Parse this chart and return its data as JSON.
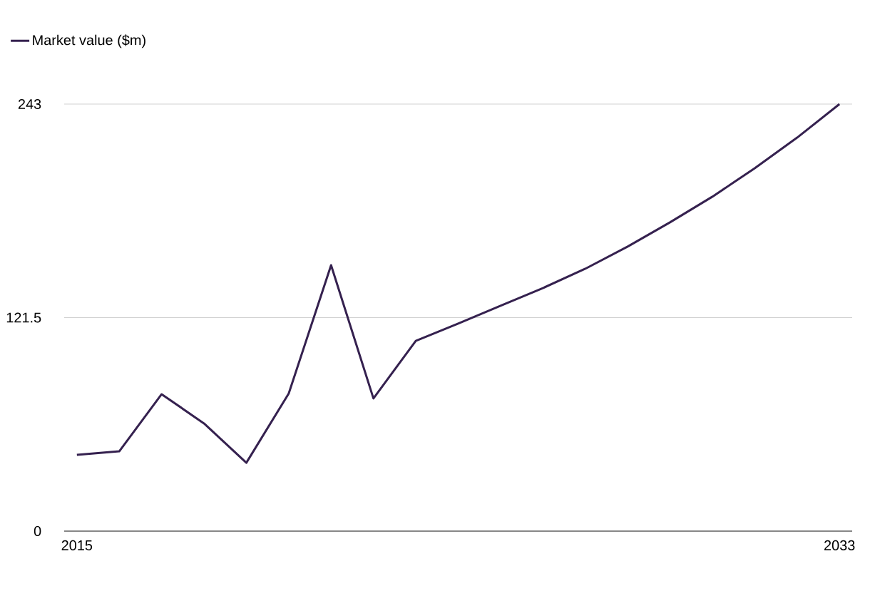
{
  "chart_data": {
    "type": "line",
    "x": [
      2015,
      2016,
      2017,
      2018,
      2019,
      2020,
      2021,
      2022,
      2023,
      2024,
      2025,
      2026,
      2027,
      2028,
      2029,
      2030,
      2031,
      2032,
      2033
    ],
    "series": [
      {
        "name": "Market value ($m)",
        "color": "#35214f",
        "values": [
          43.4,
          45.4,
          77.9,
          61.3,
          38.9,
          78.3,
          151.3,
          75.5,
          108.3,
          118.1,
          128.2,
          138.3,
          149.3,
          161.9,
          175.7,
          190.3,
          206.5,
          223.9,
          243
        ]
      }
    ],
    "xlim": [
      2014.7,
      2033.3
    ],
    "xticks": [
      2015,
      2033
    ],
    "ylim": [
      0,
      243
    ],
    "yticks": [
      0,
      121.5,
      243
    ],
    "grid": "y",
    "legend": "top left",
    "line_style": "solid"
  }
}
